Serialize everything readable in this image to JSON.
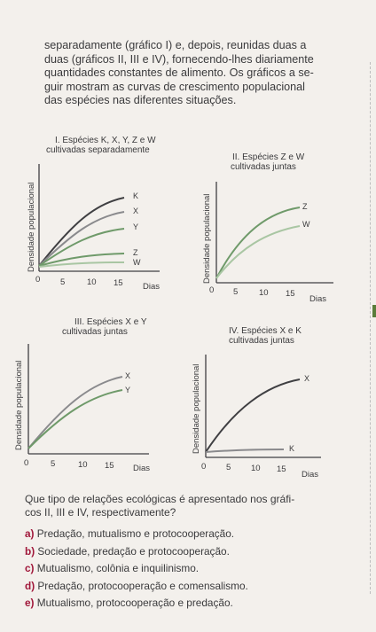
{
  "intro_lines": [
    "separadamente (gráfico I) e, depois, reunidas duas a",
    "duas (gráficos II, III e IV), fornecendo-lhes diariamente",
    "quantidades constantes de alimento. Os gráficos a se-",
    "guir mostram as curvas de crescimento populacional",
    "das espécies nas diferentes situações."
  ],
  "y_axis_label": "Densidade populacional",
  "x_axis_label": "Dias",
  "x_ticks": [
    "0",
    "5",
    "10",
    "15"
  ],
  "graphs": {
    "g1": {
      "title1": "I. Espécies K, X, Y, Z e W",
      "title2": "cultivadas separadamente",
      "curves": [
        "K",
        "X",
        "Y",
        "Z",
        "W"
      ]
    },
    "g2": {
      "title1": "II. Espécies Z e W",
      "title2": "cultivadas juntas",
      "curves": [
        "Z",
        "W"
      ]
    },
    "g3": {
      "title1": "III. Espécies X e Y",
      "title2": "cultivadas juntas",
      "curves": [
        "X",
        "Y"
      ]
    },
    "g4": {
      "title1": "IV. Espécies X e K",
      "title2": "cultivadas juntas",
      "curves": [
        "X",
        "K"
      ]
    }
  },
  "question": "Que tipo de relações ecológicas é apresentado nos gráfi-cos II, III e IV, respectivamente?",
  "question_lines": [
    "Que tipo de relações ecológicas é apresentado nos gráfi-",
    "cos II, III e IV, respectivamente?"
  ],
  "options": [
    {
      "letter": "a)",
      "text": "Predação, mutualismo e protocooperação."
    },
    {
      "letter": "b)",
      "text": "Sociedade, predação e protocooperação."
    },
    {
      "letter": "c)",
      "text": "Mutualismo, colônia e inquilinismo."
    },
    {
      "letter": "d)",
      "text": "Predação, protocooperação e comensalismo."
    },
    {
      "letter": "e)",
      "text": "Mutualismo, protocooperação e predação."
    }
  ],
  "colors": {
    "dark": "#3f3f42",
    "gray": "#8a8a8d",
    "green": "#6f9a6a",
    "lightgreen": "#a9c6a3",
    "option_letter": "#a0173a"
  }
}
